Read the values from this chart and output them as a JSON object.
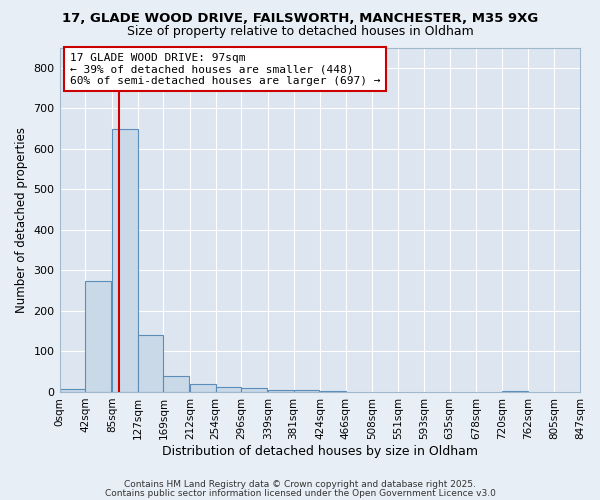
{
  "title_line1": "17, GLADE WOOD DRIVE, FAILSWORTH, MANCHESTER, M35 9XG",
  "title_line2": "Size of property relative to detached houses in Oldham",
  "xlabel": "Distribution of detached houses by size in Oldham",
  "ylabel": "Number of detached properties",
  "bin_labels": [
    "0sqm",
    "42sqm",
    "85sqm",
    "127sqm",
    "169sqm",
    "212sqm",
    "254sqm",
    "296sqm",
    "339sqm",
    "381sqm",
    "424sqm",
    "466sqm",
    "508sqm",
    "551sqm",
    "593sqm",
    "635sqm",
    "678sqm",
    "720sqm",
    "762sqm",
    "805sqm",
    "847sqm"
  ],
  "bin_edges": [
    0,
    42,
    85,
    127,
    169,
    212,
    254,
    296,
    339,
    381,
    424,
    466,
    508,
    551,
    593,
    635,
    678,
    720,
    762,
    805,
    847
  ],
  "bar_heights": [
    8,
    275,
    650,
    140,
    40,
    20,
    12,
    10,
    6,
    5,
    3,
    0,
    0,
    0,
    0,
    0,
    0,
    3,
    0,
    0,
    0
  ],
  "bar_color": "#c9d9e8",
  "bar_edge_color": "#5b8db8",
  "property_size": 97,
  "red_line_color": "#cc0000",
  "annotation_title": "17 GLADE WOOD DRIVE: 97sqm",
  "annotation_line1": "← 39% of detached houses are smaller (448)",
  "annotation_line2": "60% of semi-detached houses are larger (697) →",
  "annotation_box_color": "#cc0000",
  "annotation_bg": "#ffffff",
  "ylim": [
    0,
    850
  ],
  "yticks": [
    0,
    100,
    200,
    300,
    400,
    500,
    600,
    700,
    800
  ],
  "bg_color": "#dde6f0",
  "fig_bg_color": "#e8eef5",
  "footnote1": "Contains HM Land Registry data © Crown copyright and database right 2025.",
  "footnote2": "Contains public sector information licensed under the Open Government Licence v3.0"
}
